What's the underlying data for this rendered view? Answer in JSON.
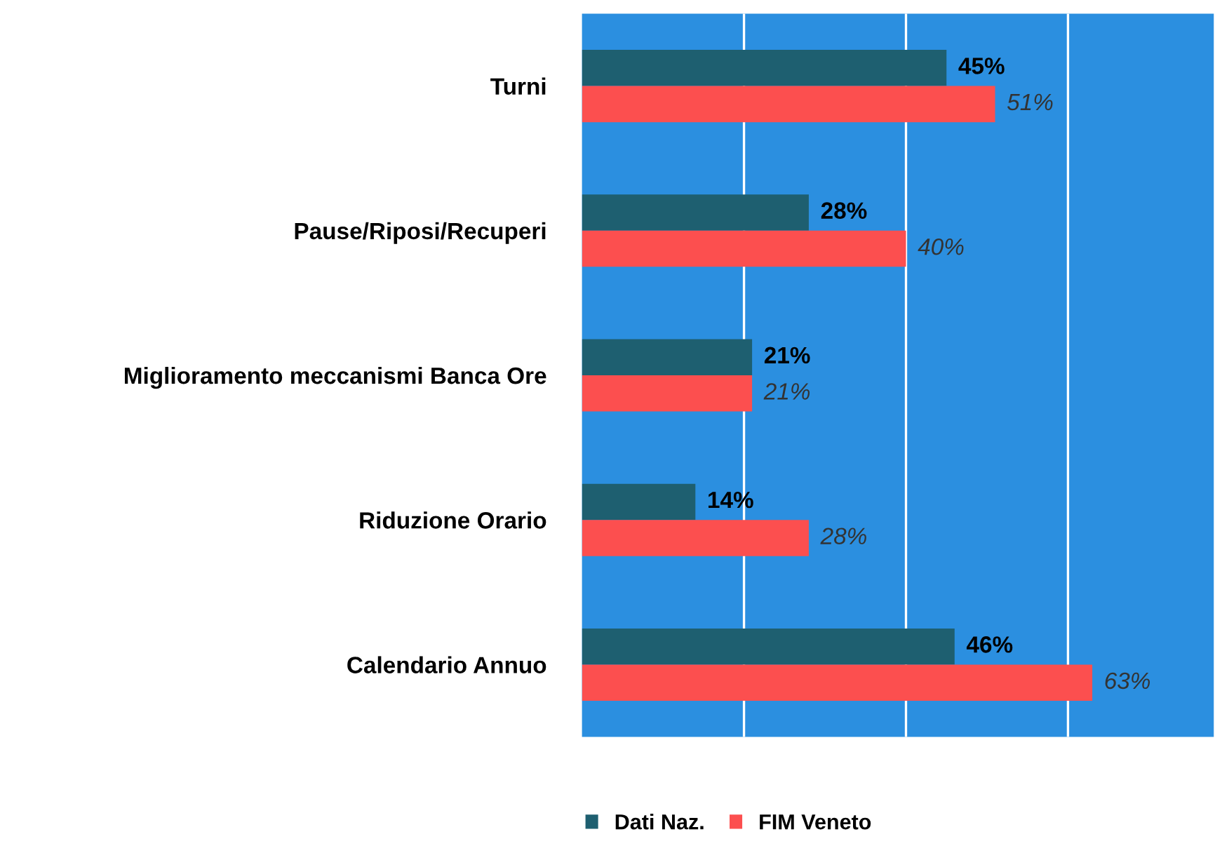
{
  "chart_data": {
    "type": "bar",
    "orientation": "horizontal",
    "categories": [
      "Turni",
      "Pause/Riposi/Recuperi",
      "Miglioramento meccanismi Banca Ore",
      "Riduzione Orario",
      "Calendario Annuo"
    ],
    "series": [
      {
        "name": "Dati Naz.",
        "color": "#1e5f70",
        "values": [
          45,
          28,
          21,
          14,
          46
        ],
        "value_labels": [
          "45%",
          "28%",
          "21%",
          "14%",
          "46%"
        ]
      },
      {
        "name": "FIM Veneto",
        "color": "#fc4f4f",
        "values": [
          51,
          40,
          21,
          28,
          63
        ],
        "value_labels": [
          "51%",
          "40%",
          "21%",
          "28%",
          "63%"
        ]
      }
    ],
    "xlim": [
      0,
      78
    ],
    "xticks": [
      {
        "value": 20,
        "label": null
      },
      {
        "value": 40,
        "label": null
      },
      {
        "value": 60,
        "label": null
      }
    ],
    "grid": "x",
    "tick_labels": "y",
    "legend": "bottom"
  }
}
